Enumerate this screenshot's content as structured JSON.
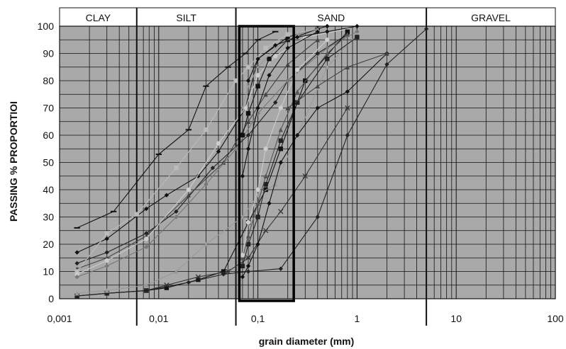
{
  "chart_data": {
    "type": "line",
    "xlabel": "grain diameter (mm)",
    "ylabel": "PASSING % PROPORTIOI",
    "x_scale": "log",
    "xlim": [
      0.001,
      100
    ],
    "ylim": [
      0,
      100
    ],
    "x_ticks": [
      "0,001",
      "0,01",
      "0,1",
      "1",
      "10",
      "100"
    ],
    "y_ticks": [
      "0",
      "10",
      "20",
      "30",
      "40",
      "50",
      "60",
      "70",
      "80",
      "90",
      "100"
    ],
    "grid": true,
    "bands": [
      {
        "label": "CLAY",
        "from": 0.001,
        "to": 0.006
      },
      {
        "label": "SILT",
        "from": 0.006,
        "to": 0.06
      },
      {
        "label": "SAND",
        "from": 0.06,
        "to": 5
      },
      {
        "label": "GRAVEL",
        "from": 5,
        "to": 100
      }
    ],
    "highlight_box": {
      "from": 0.065,
      "to": 0.23
    },
    "series": [
      {
        "color": "#111111",
        "marker": "dash",
        "x": [
          0.0015,
          0.0035,
          0.01,
          0.02,
          0.03,
          0.05,
          0.075,
          0.1,
          0.15
        ],
        "y": [
          26,
          32,
          53,
          62,
          78,
          85,
          90,
          95,
          98
        ]
      },
      {
        "color": "#111111",
        "marker": "diamond",
        "x": [
          0.0015,
          0.003,
          0.0075,
          0.012,
          0.025,
          0.04,
          0.075,
          0.1,
          0.2,
          0.5
        ],
        "y": [
          17,
          22,
          33,
          38,
          45,
          54,
          70,
          88,
          96,
          100
        ]
      },
      {
        "color": "#222222",
        "marker": "diamond",
        "x": [
          0.0015,
          0.003,
          0.0075,
          0.015,
          0.035,
          0.08,
          0.15,
          0.2,
          0.4,
          0.8
        ],
        "y": [
          13,
          17,
          24,
          32,
          48,
          60,
          72,
          80,
          90,
          97
        ]
      },
      {
        "color": "#444444",
        "marker": "triangle",
        "x": [
          0.0015,
          0.003,
          0.0075,
          0.02,
          0.045,
          0.08,
          0.12,
          0.2,
          0.4
        ],
        "y": [
          11,
          15,
          23,
          38,
          50,
          65,
          75,
          86,
          95
        ]
      },
      {
        "color": "#bbbbbb",
        "marker": "square",
        "x": [
          0.0015,
          0.003,
          0.006,
          0.015,
          0.03,
          0.06,
          0.08,
          0.12,
          0.2,
          0.4
        ],
        "y": [
          10,
          24,
          31,
          48,
          62,
          80,
          85,
          92,
          97,
          99
        ]
      },
      {
        "color": "#cccccc",
        "marker": "circle",
        "x": [
          0.0015,
          0.003,
          0.0075,
          0.02,
          0.04,
          0.075,
          0.1,
          0.15,
          0.3,
          0.8
        ],
        "y": [
          9,
          14,
          22,
          40,
          57,
          70,
          82,
          89,
          96,
          99
        ]
      },
      {
        "color": "#777777",
        "marker": "diamond",
        "x": [
          0.0015,
          0.003,
          0.0075,
          0.015,
          0.03,
          0.06,
          0.1,
          0.2,
          0.5,
          1
        ],
        "y": [
          8,
          12,
          19,
          30,
          42,
          55,
          68,
          80,
          92,
          98
        ]
      },
      {
        "color": "#111111",
        "marker": "square",
        "x": [
          0.0015,
          0.003,
          0.0075,
          0.012,
          0.025,
          0.045,
          0.08,
          0.12,
          0.17,
          0.3,
          0.8
        ],
        "y": [
          1,
          2,
          3,
          4,
          7,
          10,
          28,
          40,
          55,
          80,
          98
        ]
      },
      {
        "color": "#333333",
        "marker": "x",
        "x": [
          0.0015,
          0.003,
          0.0075,
          0.012,
          0.025,
          0.05,
          0.08,
          0.12,
          0.17,
          0.3,
          0.8
        ],
        "y": [
          1,
          2,
          3,
          5,
          8,
          10,
          15,
          25,
          32,
          45,
          70
        ]
      },
      {
        "color": "#222222",
        "marker": "diamond",
        "x": [
          0.0015,
          0.003,
          0.0075,
          0.02,
          0.045,
          0.08,
          0.17,
          0.4,
          0.8,
          2,
          5
        ],
        "y": [
          1,
          2,
          3,
          6,
          9,
          10,
          11,
          30,
          60,
          86,
          99
        ]
      },
      {
        "color": "#999999",
        "marker": "triangle",
        "x": [
          0.0015,
          0.003,
          0.0075,
          0.015,
          0.03,
          0.07,
          0.1,
          0.15,
          0.25,
          0.5,
          1
        ],
        "y": [
          2,
          3,
          5,
          10,
          20,
          30,
          38,
          42,
          60,
          85,
          97
        ]
      },
      {
        "color": "#111111",
        "marker": "diamond",
        "x": [
          0.07,
          0.08,
          0.1,
          0.13,
          0.17,
          0.25,
          0.4,
          0.8,
          2
        ],
        "y": [
          8,
          12,
          20,
          35,
          50,
          60,
          70,
          76,
          90
        ]
      },
      {
        "color": "#222222",
        "marker": "square",
        "x": [
          0.07,
          0.08,
          0.1,
          0.12,
          0.17,
          0.25,
          0.5,
          1
        ],
        "y": [
          12,
          20,
          30,
          42,
          58,
          72,
          88,
          96
        ]
      },
      {
        "color": "#555555",
        "marker": "triangle",
        "x": [
          0.07,
          0.08,
          0.1,
          0.12,
          0.17,
          0.25,
          0.5,
          0.8
        ],
        "y": [
          15,
          23,
          35,
          45,
          62,
          76,
          90,
          97
        ]
      },
      {
        "color": "#cccccc",
        "marker": "circle",
        "x": [
          0.07,
          0.08,
          0.1,
          0.12,
          0.17,
          0.25,
          0.5
        ],
        "y": [
          16,
          28,
          40,
          55,
          70,
          84,
          95
        ]
      },
      {
        "color": "#111111",
        "marker": "diamond",
        "x": [
          0.07,
          0.08,
          0.1,
          0.13,
          0.2,
          0.4
        ],
        "y": [
          45,
          55,
          70,
          82,
          92,
          98
        ]
      },
      {
        "color": "#111111",
        "marker": "square",
        "x": [
          0.07,
          0.08,
          0.1,
          0.13,
          0.2,
          0.4
        ],
        "y": [
          60,
          68,
          78,
          88,
          95,
          99
        ]
      },
      {
        "color": "#999999",
        "marker": "x",
        "x": [
          0.07,
          0.08,
          0.1,
          0.15,
          0.25,
          0.4
        ],
        "y": [
          70,
          78,
          85,
          92,
          97,
          99
        ]
      },
      {
        "color": "#111111",
        "marker": "diamond",
        "x": [
          0.08,
          0.1,
          0.15,
          0.25,
          0.5,
          1
        ],
        "y": [
          80,
          88,
          93,
          96,
          98,
          100
        ]
      },
      {
        "color": "#444444",
        "marker": "triangle",
        "x": [
          0.2,
          0.4,
          0.8,
          2
        ],
        "y": [
          70,
          78,
          85,
          90
        ]
      }
    ]
  }
}
